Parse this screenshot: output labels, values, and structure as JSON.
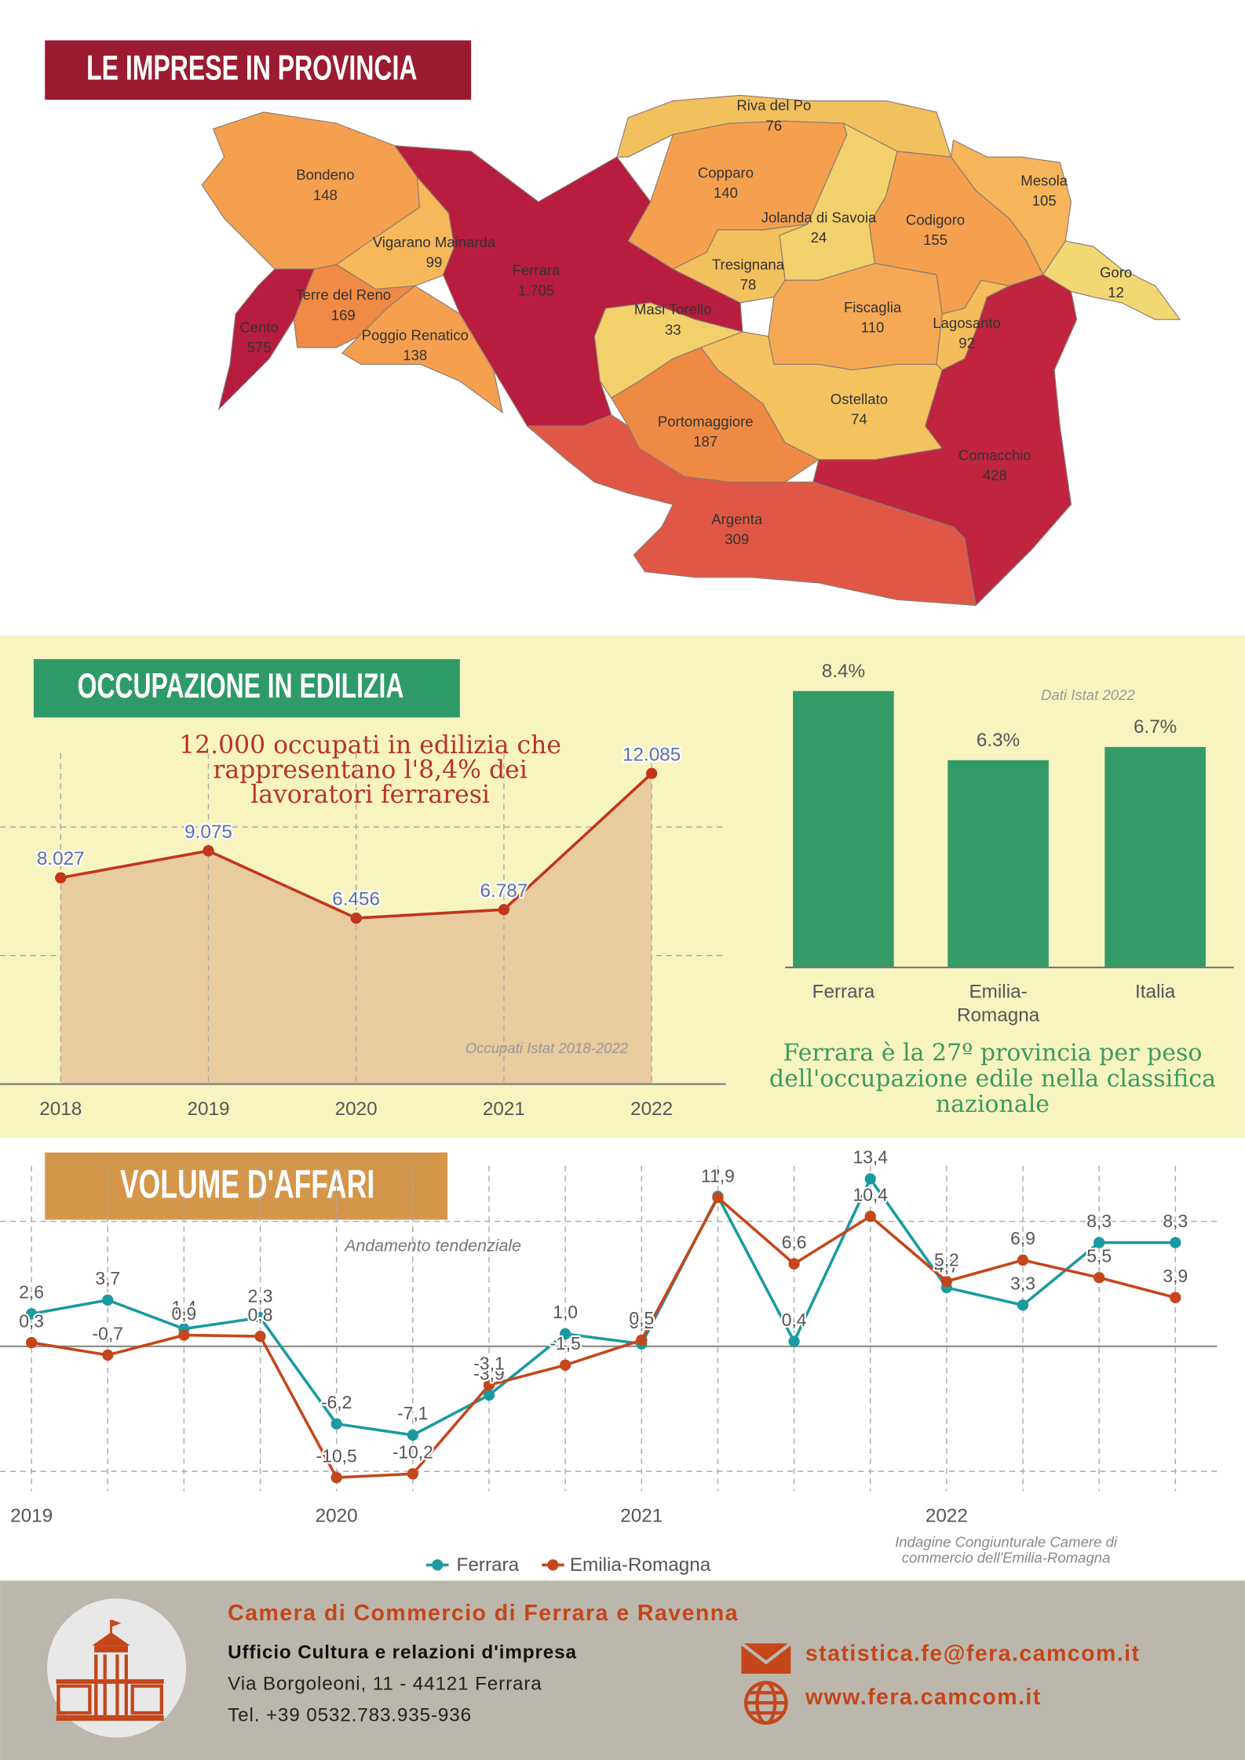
{
  "header": {
    "title": "LE IMPRESE IN PROVINCIA"
  },
  "map": {
    "regions": [
      {
        "name": "Bondeno",
        "value": 148,
        "color": "#f5a04f"
      },
      {
        "name": "Vigarano Mainarda",
        "value": 99,
        "color": "#f6b85a"
      },
      {
        "name": "Ferrara",
        "value": 1705,
        "value_label": "1.705",
        "color": "#b81c3f"
      },
      {
        "name": "Cento",
        "value": 575,
        "color": "#b81c3f"
      },
      {
        "name": "Terre del Reno",
        "value": 169,
        "color": "#f08a45"
      },
      {
        "name": "Poggio Renatico",
        "value": 138,
        "color": "#f5a04f"
      },
      {
        "name": "Riva del Po",
        "value": 76,
        "color": "#f3c05e"
      },
      {
        "name": "Copparo",
        "value": 140,
        "color": "#f5a04f"
      },
      {
        "name": "Jolanda di Savoia",
        "value": 24,
        "color": "#f2d06b"
      },
      {
        "name": "Tresignana",
        "value": 78,
        "color": "#f3c05e"
      },
      {
        "name": "Codigoro",
        "value": 155,
        "color": "#f5a04f"
      },
      {
        "name": "Mesola",
        "value": 105,
        "color": "#f6b55a"
      },
      {
        "name": "Goro",
        "value": 12,
        "color": "#f2d873"
      },
      {
        "name": "Masi Torello",
        "value": 33,
        "color": "#f2d06b"
      },
      {
        "name": "Fiscaglia",
        "value": 110,
        "color": "#f6a955"
      },
      {
        "name": "Lagosanto",
        "value": 92,
        "color": "#f5bc5b"
      },
      {
        "name": "Ostellato",
        "value": 74,
        "color": "#f4c35f"
      },
      {
        "name": "Portomaggiore",
        "value": 187,
        "color": "#ef8a45"
      },
      {
        "name": "Comacchio",
        "value": 428,
        "color": "#c0243f"
      },
      {
        "name": "Argenta",
        "value": 309,
        "color": "#e05845"
      }
    ]
  },
  "chart_data": [
    {
      "type": "area",
      "title": "OCCUPAZIONE IN EDILIZIA",
      "annotation": "12.000 occupati in edilizia che rappresentano l'8,4% dei lavoratori ferraresi",
      "source": "Occupati Istat 2018-2022",
      "categories": [
        "2018",
        "2019",
        "2020",
        "2021",
        "2022"
      ],
      "values": [
        8027,
        9075,
        6456,
        6787,
        12085
      ],
      "value_labels": [
        "8.027",
        "9.075",
        "6.456",
        "6.787",
        "12.085"
      ],
      "color": "#c0361c",
      "fill": "#e9cba0",
      "ylim": [
        0,
        13000
      ],
      "yticks": [
        5000,
        10000
      ],
      "grid": true
    },
    {
      "type": "bar",
      "note": "Dati Istat 2022",
      "annotation": "Ferrara è la 27º provincia per peso dell'occupazione edile nella classifica nazionale",
      "categories": [
        "Ferrara",
        "Emilia-Romagna",
        "Italia"
      ],
      "values": [
        8.4,
        6.3,
        6.7
      ],
      "value_labels": [
        "8.4%",
        "6.3%",
        "6.7%"
      ],
      "color": "#339a68",
      "ylim": [
        0,
        9.2
      ]
    },
    {
      "type": "line",
      "title": "VOLUME D'AFFARI",
      "subtitle": "Andamento tendenziale",
      "source": "Indagine Congiunturale Camere di commercio dell'Emilia-Romagna",
      "categories": [
        "2019",
        null,
        null,
        null,
        "2020",
        null,
        null,
        null,
        "2021",
        null,
        null,
        null,
        "2022",
        null,
        null,
        null
      ],
      "series": [
        {
          "name": "Ferrara",
          "color": "#1a9aa0",
          "values": [
            2.6,
            3.7,
            1.4,
            2.3,
            -6.2,
            -7.1,
            -3.9,
            1.0,
            0.2,
            12.0,
            0.4,
            13.4,
            4.7,
            3.3,
            8.3,
            8.3
          ],
          "value_labels": [
            "2,6",
            "3,7",
            "1,4",
            "2,3",
            "-6,2",
            "-7,1",
            "-3,9",
            "1,0",
            "0,2",
            "12,0",
            "0,4",
            "13,4",
            "4,7",
            "3,3",
            "8,3",
            "8,3"
          ]
        },
        {
          "name": "Emilia-Romagna",
          "color": "#c4461a",
          "values": [
            0.3,
            -0.7,
            0.9,
            0.8,
            -10.5,
            -10.2,
            -3.1,
            -1.5,
            0.5,
            11.9,
            6.6,
            10.4,
            5.2,
            6.9,
            5.5,
            3.9
          ],
          "value_labels": [
            "0,3",
            "-0,7",
            "0,9",
            "0,8",
            "-10,5",
            "-10,2",
            "-3,1",
            "-1,5",
            "0,5",
            "11,9",
            "6,6",
            "10,4",
            "5,2",
            "6,9",
            "5,5",
            "3,9"
          ]
        }
      ],
      "ylim": [
        -12,
        15
      ],
      "yticks": [
        -10,
        0,
        10
      ],
      "grid": true,
      "legend": "bottom"
    }
  ],
  "footer": {
    "organization": "Camera di Commercio di Ferrara e Ravenna",
    "office": "Ufficio Cultura e relazioni d'impresa",
    "address": "Via Borgoleoni, 11 - 44121 Ferrara",
    "phone": "Tel. +39 0532.783.935-936",
    "email": "statistica.fe@fera.camcom.it",
    "website": "www.fera.camcom.it"
  }
}
